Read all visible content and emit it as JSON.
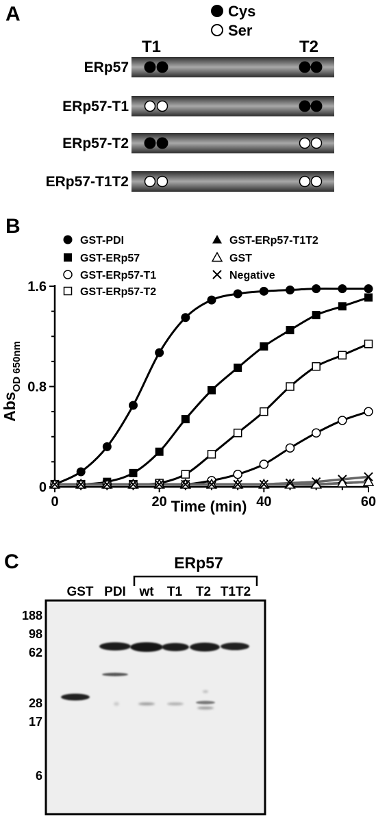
{
  "panel_a": {
    "panel_label": "A",
    "legend": [
      {
        "symbol": "filled-circle",
        "label": "Cys"
      },
      {
        "symbol": "open-circle",
        "label": "Ser"
      }
    ],
    "site_labels": [
      "T1",
      "T2"
    ],
    "constructs": [
      {
        "name": "ERp57",
        "t1": "Cys",
        "t2": "Cys"
      },
      {
        "name": "ERp57-T1",
        "t1": "Ser",
        "t2": "Cys"
      },
      {
        "name": "ERp57-T2",
        "t1": "Cys",
        "t2": "Ser"
      },
      {
        "name": "ERp57-T1T2",
        "t1": "Ser",
        "t2": "Ser"
      }
    ]
  },
  "panel_b": {
    "panel_label": "B"
  },
  "panel_c": {
    "panel_label": "C",
    "group_label": "ERp57",
    "lane_labels": [
      "GST",
      "PDI",
      "wt",
      "T1",
      "T2",
      "T1T2"
    ],
    "mw_markers": [
      "188",
      "98",
      "62",
      "28",
      "17",
      "6"
    ]
  },
  "chart_data": {
    "type": "line",
    "xlabel": "Time (min)",
    "ylabel": "Abs",
    "ylabel_subscript": "OD 650nm",
    "xlim": [
      0,
      60
    ],
    "ylim": [
      0,
      1.6
    ],
    "xticks": [
      "0",
      "20",
      "40",
      "60"
    ],
    "yticks": [
      "0",
      "0.8",
      "1.6"
    ],
    "grid": false,
    "legend_position": "top",
    "x": [
      0,
      5,
      10,
      15,
      20,
      25,
      30,
      35,
      40,
      45,
      50,
      55,
      60
    ],
    "series": [
      {
        "name": "GST-PDI",
        "marker": "filled-circle",
        "values": [
          0.02,
          0.12,
          0.32,
          0.65,
          1.07,
          1.35,
          1.49,
          1.54,
          1.56,
          1.57,
          1.58,
          1.58,
          1.58
        ]
      },
      {
        "name": "GST-ERp57",
        "marker": "filled-square",
        "values": [
          0.02,
          0.02,
          0.04,
          0.11,
          0.28,
          0.54,
          0.77,
          0.95,
          1.12,
          1.25,
          1.37,
          1.44,
          1.51
        ]
      },
      {
        "name": "GST-ERp57-T1",
        "marker": "open-circle",
        "values": [
          0.02,
          0.02,
          0.02,
          0.02,
          0.02,
          0.02,
          0.05,
          0.1,
          0.18,
          0.31,
          0.43,
          0.53,
          0.6
        ]
      },
      {
        "name": "GST-ERp57-T2",
        "marker": "open-square",
        "values": [
          0.02,
          0.02,
          0.02,
          0.02,
          0.03,
          0.1,
          0.26,
          0.43,
          0.6,
          0.8,
          0.96,
          1.05,
          1.14
        ]
      },
      {
        "name": "GST-ERp57-T1T2",
        "marker": "filled-triangle",
        "values": [
          0.02,
          0.02,
          0.02,
          0.02,
          0.02,
          0.02,
          0.02,
          0.02,
          0.02,
          0.02,
          0.02,
          0.03,
          0.04
        ]
      },
      {
        "name": "GST",
        "marker": "open-triangle",
        "values": [
          0.02,
          0.02,
          0.02,
          0.02,
          0.02,
          0.02,
          0.02,
          0.02,
          0.02,
          0.02,
          0.02,
          0.03,
          0.04
        ]
      },
      {
        "name": "Negative",
        "marker": "cross",
        "values": [
          0.02,
          0.02,
          0.02,
          0.02,
          0.02,
          0.02,
          0.02,
          0.02,
          0.02,
          0.03,
          0.04,
          0.06,
          0.08
        ]
      }
    ]
  }
}
